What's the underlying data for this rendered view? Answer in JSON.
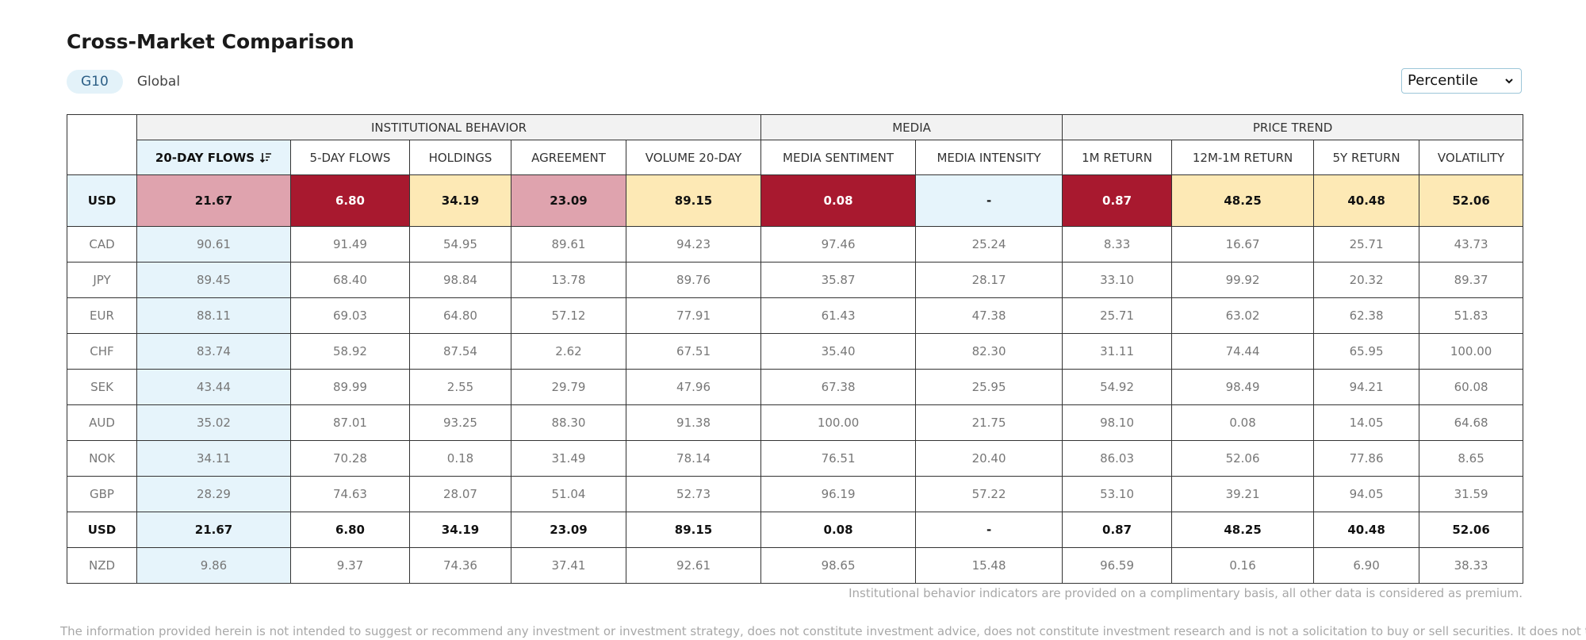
{
  "title": "Cross-Market Comparison",
  "tabs": [
    {
      "label": "G10",
      "active": true
    },
    {
      "label": "Global",
      "active": false
    }
  ],
  "select": {
    "value": "Percentile",
    "icon": "chevron-down-icon"
  },
  "groups": [
    {
      "label": "INSTITUTIONAL BEHAVIOR",
      "span": 5
    },
    {
      "label": "MEDIA",
      "span": 2
    },
    {
      "label": "PRICE TREND",
      "span": 4
    }
  ],
  "columns": [
    "20-DAY FLOWS",
    "5-DAY FLOWS",
    "HOLDINGS",
    "AGREEMENT",
    "VOLUME 20-DAY",
    "MEDIA SENTIMENT",
    "MEDIA INTENSITY",
    "1M RETURN",
    "12M-1M RETURN",
    "5Y RETURN",
    "VOLATILITY"
  ],
  "sorted_column_icon": "sort-descending-icon",
  "highlight_row": {
    "label": "USD",
    "values": [
      "21.67",
      "6.80",
      "34.19",
      "23.09",
      "89.15",
      "0.08",
      "-",
      "0.87",
      "48.25",
      "40.48",
      "52.06"
    ],
    "colors": [
      "pink",
      "dark",
      "yellow",
      "pink",
      "yellow",
      "dark",
      "blue",
      "dark",
      "yellow",
      "yellow",
      "yellow"
    ]
  },
  "rows": [
    {
      "label": "CAD",
      "values": [
        "90.61",
        "91.49",
        "54.95",
        "89.61",
        "94.23",
        "97.46",
        "25.24",
        "8.33",
        "16.67",
        "25.71",
        "43.73"
      ]
    },
    {
      "label": "JPY",
      "values": [
        "89.45",
        "68.40",
        "98.84",
        "13.78",
        "89.76",
        "35.87",
        "28.17",
        "33.10",
        "99.92",
        "20.32",
        "89.37"
      ]
    },
    {
      "label": "EUR",
      "values": [
        "88.11",
        "69.03",
        "64.80",
        "57.12",
        "77.91",
        "61.43",
        "47.38",
        "25.71",
        "63.02",
        "62.38",
        "51.83"
      ]
    },
    {
      "label": "CHF",
      "values": [
        "83.74",
        "58.92",
        "87.54",
        "2.62",
        "67.51",
        "35.40",
        "82.30",
        "31.11",
        "74.44",
        "65.95",
        "100.00"
      ]
    },
    {
      "label": "SEK",
      "values": [
        "43.44",
        "89.99",
        "2.55",
        "29.79",
        "47.96",
        "67.38",
        "25.95",
        "54.92",
        "98.49",
        "94.21",
        "60.08"
      ]
    },
    {
      "label": "AUD",
      "values": [
        "35.02",
        "87.01",
        "93.25",
        "88.30",
        "91.38",
        "100.00",
        "21.75",
        "98.10",
        "0.08",
        "14.05",
        "64.68"
      ]
    },
    {
      "label": "NOK",
      "values": [
        "34.11",
        "70.28",
        "0.18",
        "31.49",
        "78.14",
        "76.51",
        "20.40",
        "86.03",
        "52.06",
        "77.86",
        "8.65"
      ]
    },
    {
      "label": "GBP",
      "values": [
        "28.29",
        "74.63",
        "28.07",
        "51.04",
        "52.73",
        "96.19",
        "57.22",
        "53.10",
        "39.21",
        "94.05",
        "31.59"
      ]
    },
    {
      "label": "USD",
      "bold": true,
      "values": [
        "21.67",
        "6.80",
        "34.19",
        "23.09",
        "89.15",
        "0.08",
        "-",
        "0.87",
        "48.25",
        "40.48",
        "52.06"
      ]
    },
    {
      "label": "NZD",
      "values": [
        "9.86",
        "9.37",
        "74.36",
        "37.41",
        "92.61",
        "98.65",
        "15.48",
        "96.59",
        "0.16",
        "6.90",
        "38.33"
      ]
    }
  ],
  "footnote": "Institutional behavior indicators are provided on a complimentary basis, all other data is considered as premium.",
  "disclaimer": "The information provided herein is not intended to suggest or recommend any investment or investment strategy, does not constitute investment advice, does not constitute investment research and is not a solicitation to buy or sell securities. It does not take",
  "colors": {
    "dark": "#a8192f",
    "pink": "#dfa3ae",
    "yellow": "#fde9b5",
    "blue": "#e6f4fb",
    "accent": "#2c5f86"
  }
}
